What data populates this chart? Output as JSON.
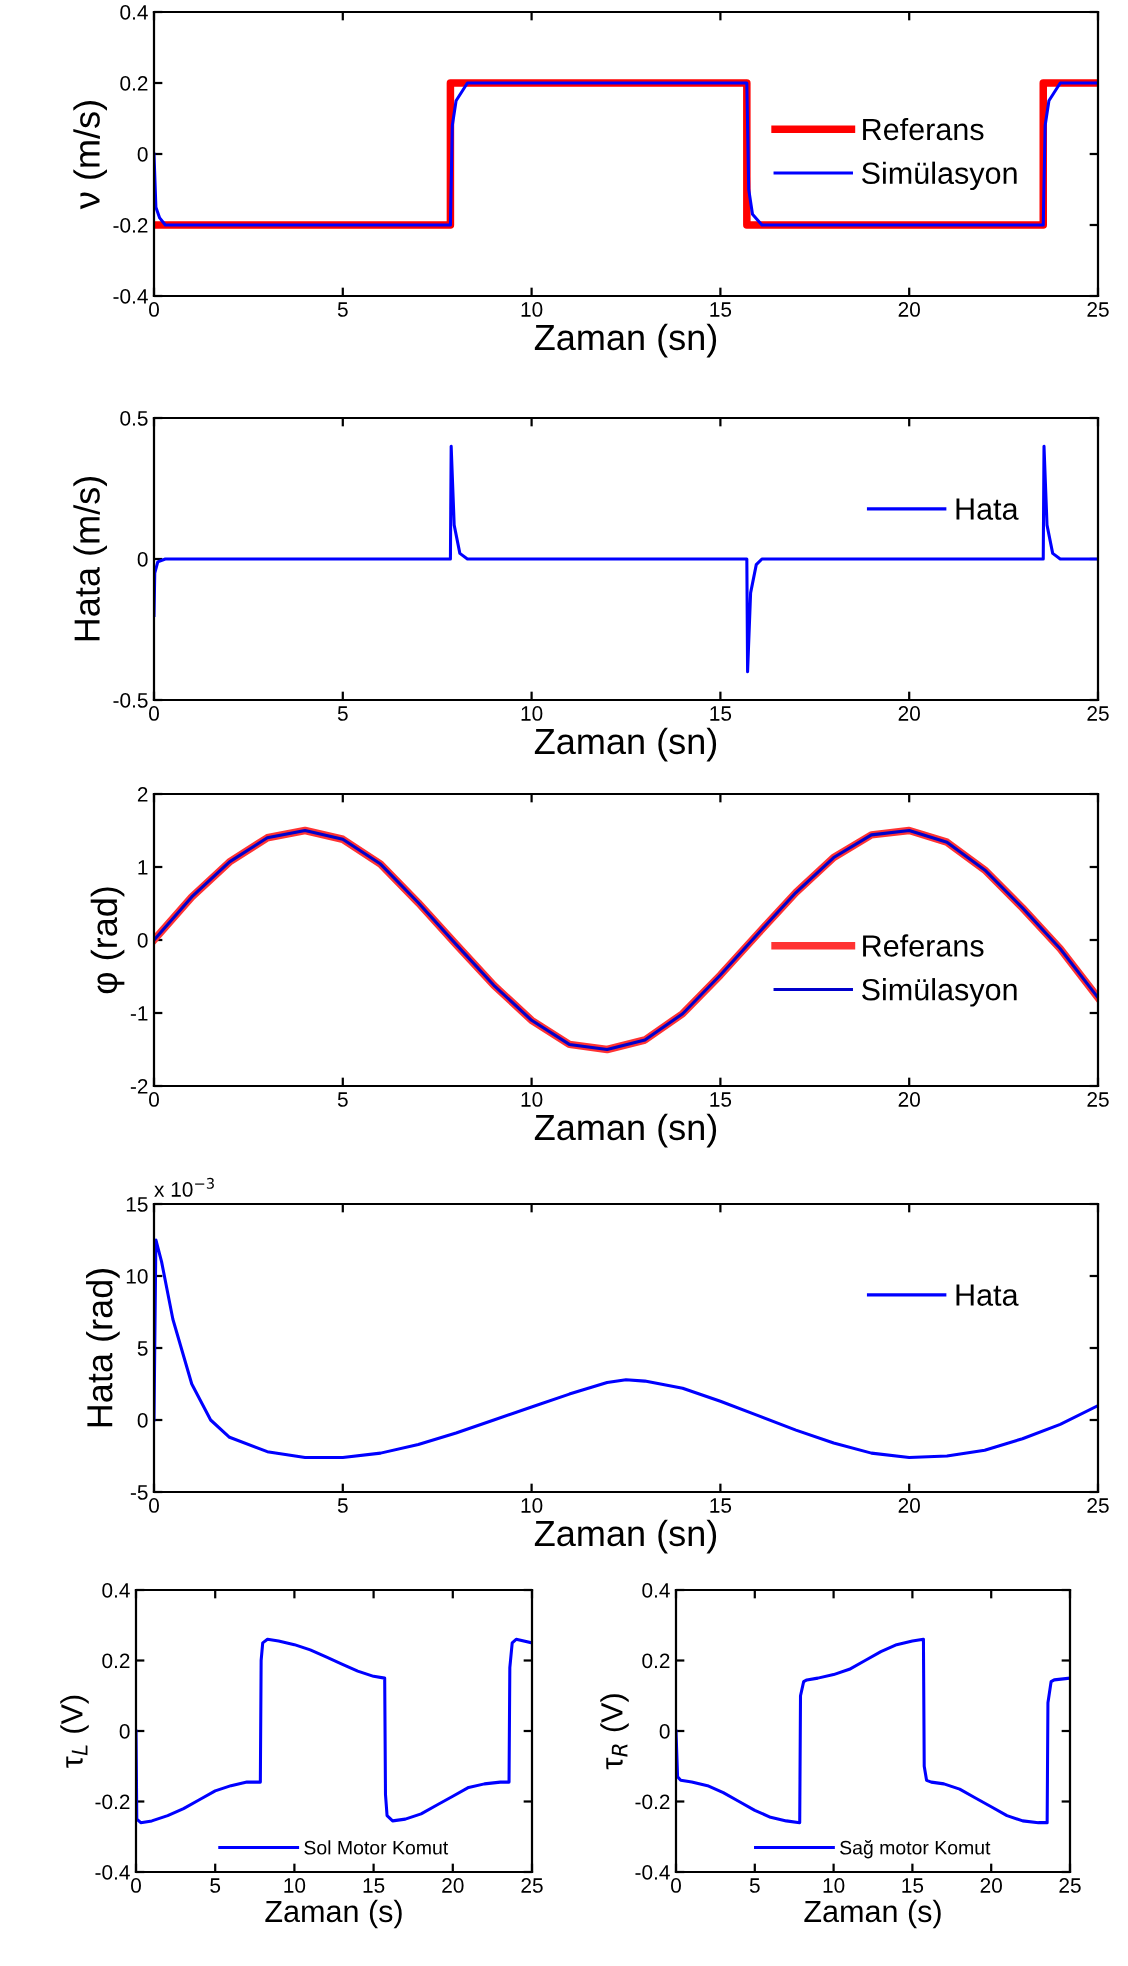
{
  "chart_data": [
    {
      "type": "line",
      "xlabel": "Zaman (sn)",
      "ylabel": "ν (m/s)",
      "xlim": [
        0,
        25
      ],
      "xticks": [
        0,
        5,
        10,
        15,
        20,
        25
      ],
      "ylim": [
        -0.4,
        0.4
      ],
      "yticks": [
        -0.4,
        -0.2,
        0,
        0.2,
        0.4
      ],
      "grid": false,
      "legend": "right",
      "series": [
        {
          "name": "Referans",
          "color": "#ff0000",
          "x": [
            0,
            7.85,
            7.85,
            15.7,
            15.7,
            23.55,
            23.55,
            25
          ],
          "values": [
            -0.2,
            -0.2,
            0.2,
            0.2,
            -0.2,
            -0.2,
            0.2,
            0.2
          ]
        },
        {
          "name": "Simülasyon",
          "color": "#0000ff",
          "x": [
            0,
            0.05,
            0.15,
            0.3,
            7.85,
            7.9,
            8.0,
            8.3,
            15.7,
            15.75,
            15.85,
            16.1,
            23.55,
            23.6,
            23.7,
            24.0,
            25
          ],
          "values": [
            0,
            -0.15,
            -0.18,
            -0.2,
            -0.2,
            0.08,
            0.15,
            0.2,
            0.2,
            -0.1,
            -0.17,
            -0.2,
            -0.2,
            0.08,
            0.15,
            0.2,
            0.2
          ]
        }
      ]
    },
    {
      "type": "line",
      "xlabel": "Zaman (sn)",
      "ylabel": "Hata (m/s)",
      "xlim": [
        0,
        25
      ],
      "xticks": [
        0,
        5,
        10,
        15,
        20,
        25
      ],
      "ylim": [
        -0.5,
        0.5
      ],
      "yticks": [
        -0.5,
        0,
        0.5
      ],
      "grid": false,
      "legend": "top right",
      "series": [
        {
          "name": "Hata",
          "color": "#0000ff",
          "x": [
            0,
            0.02,
            0.1,
            0.3,
            7.85,
            7.87,
            7.95,
            8.1,
            8.3,
            15.7,
            15.72,
            15.8,
            15.95,
            16.1,
            23.55,
            23.57,
            23.65,
            23.8,
            24.0,
            25
          ],
          "values": [
            -0.2,
            -0.05,
            -0.01,
            0,
            0,
            0.4,
            0.12,
            0.02,
            0,
            0,
            -0.4,
            -0.12,
            -0.02,
            0,
            0,
            0.4,
            0.12,
            0.02,
            0,
            0
          ]
        }
      ]
    },
    {
      "type": "line",
      "xlabel": "Zaman (sn)",
      "ylabel": "φ (rad)",
      "xlim": [
        0,
        25
      ],
      "xticks": [
        0,
        5,
        10,
        15,
        20,
        25
      ],
      "ylim": [
        -2,
        2
      ],
      "yticks": [
        -2,
        -1,
        0,
        1,
        2
      ],
      "grid": false,
      "legend": "bottom right",
      "series": [
        {
          "name": "Referans",
          "color": "#ff3333",
          "x": [
            0,
            1,
            2,
            3,
            4,
            5,
            6,
            7,
            8,
            9,
            10,
            11,
            12,
            13,
            14,
            15,
            16,
            17,
            18,
            19,
            20,
            21,
            22,
            23,
            24,
            25
          ],
          "values": [
            0,
            0.59,
            1.07,
            1.4,
            1.5,
            1.38,
            1.04,
            0.51,
            -0.06,
            -0.62,
            -1.1,
            -1.43,
            -1.5,
            -1.37,
            -1.01,
            -0.48,
            0.09,
            0.65,
            1.13,
            1.44,
            1.5,
            1.34,
            0.96,
            0.44,
            -0.12,
            -0.79
          ]
        },
        {
          "name": "Simülasyon",
          "color": "#0000cc",
          "x": [
            0,
            1,
            2,
            3,
            4,
            5,
            6,
            7,
            8,
            9,
            10,
            11,
            12,
            13,
            14,
            15,
            16,
            17,
            18,
            19,
            20,
            21,
            22,
            23,
            24,
            25
          ],
          "values": [
            0,
            0.59,
            1.07,
            1.4,
            1.5,
            1.38,
            1.04,
            0.51,
            -0.06,
            -0.62,
            -1.1,
            -1.43,
            -1.5,
            -1.37,
            -1.01,
            -0.48,
            0.09,
            0.65,
            1.13,
            1.44,
            1.5,
            1.34,
            0.96,
            0.44,
            -0.12,
            -0.79
          ]
        }
      ]
    },
    {
      "type": "line",
      "xlabel": "Zaman (sn)",
      "ylabel": "Hata (rad)",
      "xlim": [
        0,
        25
      ],
      "xticks": [
        0,
        5,
        10,
        15,
        20,
        25
      ],
      "ylim": [
        -5,
        15
      ],
      "yticks": [
        -5,
        0,
        5,
        10,
        15
      ],
      "grid": false,
      "legend": "top right",
      "annotations": [
        "x 10$^{−3}$"
      ],
      "series": [
        {
          "name": "Hata",
          "color": "#0000ff",
          "x": [
            0,
            0.05,
            0.2,
            0.5,
            1,
            1.5,
            2,
            3,
            4,
            5,
            6,
            7,
            8,
            9,
            10,
            11,
            12,
            12.5,
            13,
            14,
            15,
            16,
            17,
            18,
            19,
            20,
            21,
            22,
            23,
            24,
            25
          ],
          "values": [
            0,
            12.5,
            11,
            7,
            2.5,
            0,
            -1.2,
            -2.2,
            -2.6,
            -2.6,
            -2.3,
            -1.7,
            -0.9,
            0,
            0.9,
            1.8,
            2.6,
            2.8,
            2.7,
            2.2,
            1.3,
            0.3,
            -0.7,
            -1.6,
            -2.3,
            -2.6,
            -2.5,
            -2.1,
            -1.3,
            -0.3,
            1.0
          ]
        }
      ]
    },
    {
      "type": "line",
      "xlabel": "Zaman (s)",
      "ylabel": "τ$_{L}$ (V)",
      "xlim": [
        0,
        25
      ],
      "xticks": [
        0,
        5,
        10,
        15,
        20,
        25
      ],
      "ylim": [
        -0.4,
        0.4
      ],
      "yticks": [
        -0.4,
        -0.2,
        0,
        0.2,
        0.4
      ],
      "grid": false,
      "legend": "bottom",
      "series": [
        {
          "name": "Sol Motor Komut",
          "color": "#0000ff",
          "x": [
            0,
            0.05,
            0.3,
            1,
            2,
            3,
            4,
            5,
            6,
            7,
            7.85,
            7.9,
            8.0,
            8.3,
            9,
            10,
            11,
            12,
            13,
            14,
            15,
            15.7,
            15.75,
            15.85,
            16.2,
            17,
            18,
            19,
            20,
            21,
            22,
            23,
            23.55,
            23.6,
            23.75,
            24,
            25
          ],
          "values": [
            0,
            -0.25,
            -0.26,
            -0.255,
            -0.24,
            -0.22,
            -0.195,
            -0.17,
            -0.155,
            -0.145,
            -0.145,
            0.2,
            0.25,
            0.26,
            0.255,
            0.245,
            0.23,
            0.21,
            0.19,
            0.17,
            0.155,
            0.15,
            -0.18,
            -0.24,
            -0.255,
            -0.25,
            -0.235,
            -0.21,
            -0.185,
            -0.16,
            -0.15,
            -0.145,
            -0.145,
            0.18,
            0.25,
            0.26,
            0.25
          ]
        }
      ]
    },
    {
      "type": "line",
      "xlabel": "Zaman (s)",
      "ylabel": "τ$_{R}$ (V)",
      "xlim": [
        0,
        25
      ],
      "xticks": [
        0,
        5,
        10,
        15,
        20,
        25
      ],
      "ylim": [
        -0.4,
        0.4
      ],
      "yticks": [
        -0.4,
        -0.2,
        0,
        0.2,
        0.4
      ],
      "grid": false,
      "legend": "bottom",
      "series": [
        {
          "name": "Sağ motor Komut",
          "color": "#0000ff",
          "x": [
            0,
            0.1,
            0.3,
            1,
            2,
            3,
            4,
            5,
            6,
            7,
            7.85,
            7.9,
            8.1,
            8.3,
            9,
            10,
            11,
            12,
            13,
            14,
            15,
            15.7,
            15.75,
            15.9,
            16.2,
            17,
            18,
            19,
            20,
            21,
            22,
            23,
            23.55,
            23.6,
            23.8,
            24,
            25
          ],
          "values": [
            0,
            -0.13,
            -0.14,
            -0.145,
            -0.155,
            -0.175,
            -0.2,
            -0.225,
            -0.245,
            -0.255,
            -0.26,
            0.1,
            0.14,
            0.145,
            0.15,
            0.16,
            0.175,
            0.2,
            0.225,
            0.245,
            0.255,
            0.26,
            -0.1,
            -0.14,
            -0.145,
            -0.15,
            -0.165,
            -0.19,
            -0.215,
            -0.24,
            -0.255,
            -0.26,
            -0.26,
            0.08,
            0.14,
            0.145,
            0.15
          ]
        }
      ]
    }
  ]
}
